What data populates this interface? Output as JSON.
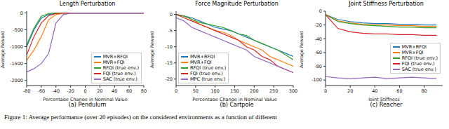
{
  "chart_data": [
    {
      "type": "line",
      "title": "Length Perturbation",
      "subtitle": "(a) Pendulum",
      "x_label": "Percentage Change in Nominal Value",
      "y_label": "Average Reward",
      "x": [
        -80,
        -70,
        -60,
        -50,
        -40,
        -30,
        -20,
        -10,
        0,
        10,
        20,
        30,
        40,
        50,
        60,
        70,
        80
      ],
      "xlim": [
        -80,
        80
      ],
      "xticks": [
        -80,
        -60,
        -40,
        -20,
        0,
        20,
        40,
        60,
        80
      ],
      "ylim": [
        -2150,
        50
      ],
      "yticks": [
        -2000,
        -1500,
        -1000,
        -500,
        0
      ],
      "legend": "lower right",
      "series": [
        {
          "name": "MVR+RFQI",
          "color": "#1f77b4",
          "values": [
            -1000,
            -500,
            -150,
            -50,
            -10,
            -5,
            -5,
            -5,
            -5,
            -5,
            -5,
            -5,
            -5,
            -5,
            -5,
            -5,
            -5
          ]
        },
        {
          "name": "MVR+FQI",
          "color": "#ff7f0e",
          "values": [
            -1400,
            -1100,
            -700,
            -200,
            -50,
            -10,
            -5,
            -5,
            -5,
            -5,
            -5,
            -5,
            -5,
            -5,
            -5,
            -5,
            -5
          ]
        },
        {
          "name": "RFQI (true env.)",
          "color": "#2ca02c",
          "values": [
            -950,
            -450,
            -100,
            -20,
            -5,
            -5,
            -5,
            -5,
            -5,
            -5,
            -5,
            -5,
            -5,
            -5,
            -5,
            -5,
            -5
          ]
        },
        {
          "name": "FQI (true env.)",
          "color": "#d62728",
          "values": [
            -1250,
            -700,
            -300,
            -80,
            -20,
            -5,
            -5,
            -5,
            -5,
            -5,
            -5,
            -5,
            -5,
            -5,
            -5,
            -5,
            -5
          ]
        },
        {
          "name": "SAC (true env.)",
          "color": "#9467bd",
          "values": [
            -1750,
            -1650,
            -1500,
            -1200,
            -300,
            -50,
            -10,
            -5,
            -5,
            -5,
            -5,
            -5,
            -5,
            -5,
            -5,
            -5,
            -5
          ]
        }
      ]
    },
    {
      "type": "line",
      "title": "Force Magnitude Perturbation",
      "subtitle": "(b) Cartpole",
      "x_label": "Percentage Change in Nominal Value",
      "y_label": "Average Reward",
      "x": [
        0,
        20,
        40,
        60,
        80,
        100,
        120,
        140,
        160,
        180,
        200,
        220,
        240,
        260,
        280,
        300
      ],
      "xlim": [
        0,
        300
      ],
      "xticks": [
        0,
        50,
        100,
        150,
        200,
        250,
        300
      ],
      "ylim": [
        -22,
        1
      ],
      "yticks": [
        -20,
        -15,
        -10,
        -5,
        0
      ],
      "legend": "lower left",
      "series": [
        {
          "name": "MVR+RFQI",
          "color": "#1f77b4",
          "values": [
            0,
            -0.5,
            -1,
            -2,
            -3,
            -4,
            -4.5,
            -5,
            -6,
            -7,
            -8,
            -9,
            -10,
            -11,
            -12,
            -13
          ]
        },
        {
          "name": "MVR+FQI",
          "color": "#ff7f0e",
          "values": [
            0,
            -0.5,
            -1.5,
            -3,
            -4,
            -5,
            -5.5,
            -6.5,
            -8,
            -9,
            -10,
            -11,
            -13,
            -14,
            -15,
            -16
          ]
        },
        {
          "name": "RFQI (true env.)",
          "color": "#2ca02c",
          "values": [
            0,
            -0.5,
            -1.5,
            -2.5,
            -3,
            -3.5,
            -4,
            -5,
            -6,
            -6.5,
            -8,
            -9,
            -10,
            -11,
            -12.5,
            -14
          ]
        },
        {
          "name": "FQI (true env.)",
          "color": "#d62728",
          "values": [
            0,
            -1,
            -2,
            -3,
            -4,
            -5,
            -6,
            -7,
            -8,
            -10,
            -11,
            -13,
            -14,
            -16,
            -17,
            -18
          ]
        },
        {
          "name": "MPC (true env.)",
          "color": "#9467bd",
          "values": [
            -1,
            -2,
            -4,
            -5,
            -6,
            -7,
            -8,
            -9,
            -10,
            -11,
            -13,
            -14,
            -15,
            -16,
            -17,
            -18
          ]
        }
      ]
    },
    {
      "type": "line",
      "title": "Joint Stiffness Perturbation",
      "subtitle": "(c) Reacher",
      "x_label": "Joint Stiffness",
      "y_label": "Average Reward",
      "x": [
        0,
        10,
        20,
        30,
        40,
        50,
        60,
        70,
        80,
        90
      ],
      "xlim": [
        0,
        95
      ],
      "xticks": [
        0,
        20,
        40,
        60,
        80
      ],
      "ylim": [
        -108,
        0
      ],
      "yticks": [
        -100,
        -80,
        -60,
        -40,
        -20,
        0
      ],
      "legend": "right",
      "series": [
        {
          "name": "MVR+RFQI",
          "color": "#1f77b4",
          "values": [
            -5,
            -12,
            -15,
            -17,
            -18,
            -18,
            -19,
            -19,
            -20,
            -20
          ]
        },
        {
          "name": "MVR+FQI",
          "color": "#ff7f0e",
          "values": [
            -5,
            -14,
            -17,
            -19,
            -20,
            -20,
            -21,
            -21,
            -22,
            -22
          ]
        },
        {
          "name": "RFQI (true env.)",
          "color": "#2ca02c",
          "values": [
            -5,
            -15,
            -18,
            -20,
            -21,
            -22,
            -23,
            -23,
            -24,
            -24
          ]
        },
        {
          "name": "FQI (true env.)",
          "color": "#d62728",
          "values": [
            -5,
            -25,
            -30,
            -32,
            -33,
            -33,
            -34,
            -34,
            -35,
            -35
          ]
        },
        {
          "name": "SAC (true env.)",
          "color": "#9467bd",
          "values": [
            -95,
            -97,
            -98,
            -97,
            -96,
            -98,
            -97,
            -96,
            -97,
            -98
          ]
        }
      ]
    }
  ],
  "caption": "Figure 1: Average performance (over 20 episodes) on the considered environments as a function of different"
}
